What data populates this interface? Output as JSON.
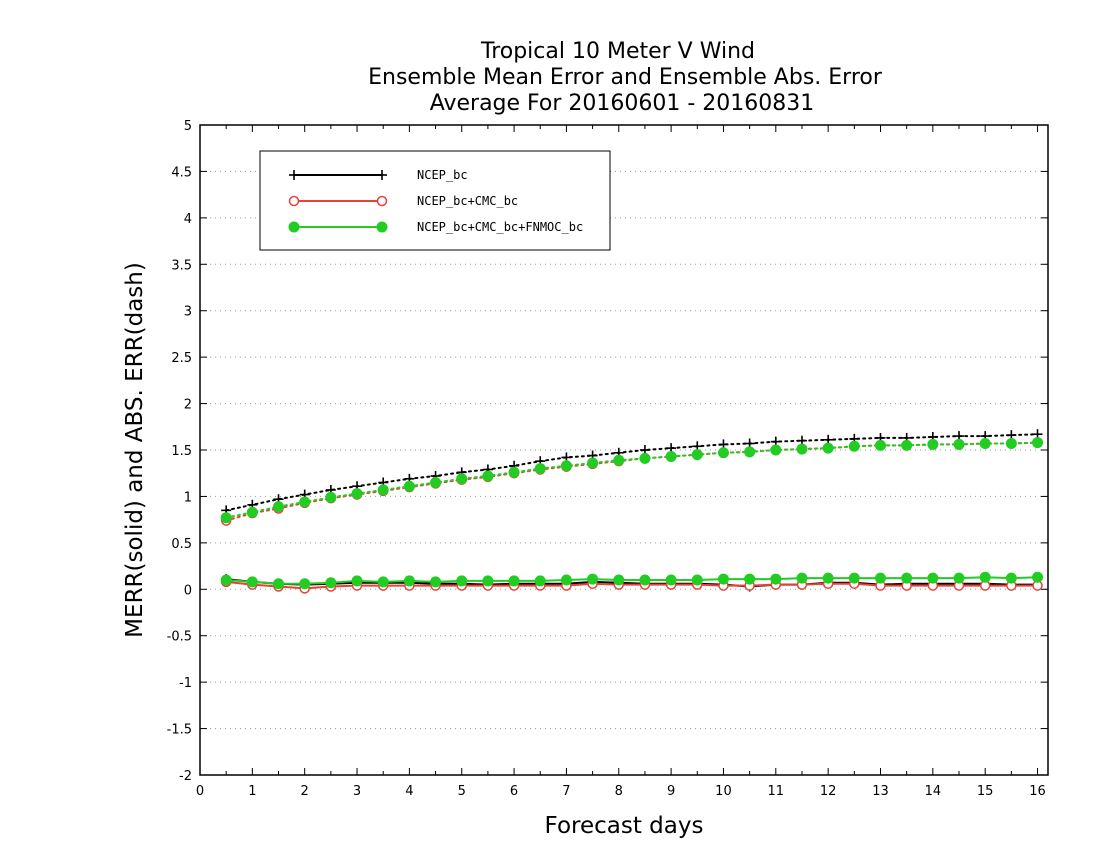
{
  "chart_data": {
    "type": "line",
    "title": [
      "Tropical 10 Meter V Wind",
      "Ensemble Mean Error and Ensemble Abs. Error",
      "Average For 20160601 - 20160831"
    ],
    "xlabel": "Forecast days",
    "ylabel": "MERR(solid) and ABS. ERR(dash)",
    "xlim": [
      0,
      16.2
    ],
    "ylim": [
      -2,
      5
    ],
    "xticks": [
      0,
      1,
      2,
      3,
      4,
      5,
      6,
      7,
      8,
      9,
      10,
      11,
      12,
      13,
      14,
      15,
      16
    ],
    "yticks": [
      -2,
      -1.5,
      -1,
      -0.5,
      0,
      0.5,
      1,
      1.5,
      2,
      2.5,
      3,
      3.5,
      4,
      4.5,
      5
    ],
    "ytick_labels": [
      "-2",
      "-1.5",
      "-1",
      "-0.5",
      "0",
      "0.5",
      "1",
      "1.5",
      "2",
      "2.5",
      "3",
      "3.5",
      "4",
      "4.5",
      "5"
    ],
    "grid": "horizontal dotted",
    "legend_position": "top-left",
    "x": [
      0.5,
      1,
      1.5,
      2,
      2.5,
      3,
      3.5,
      4,
      4.5,
      5,
      5.5,
      6,
      6.5,
      7,
      7.5,
      8,
      8.5,
      9,
      9.5,
      10,
      10.5,
      11,
      11.5,
      12,
      12.5,
      13,
      13.5,
      14,
      14.5,
      15,
      15.5,
      16
    ],
    "series": [
      {
        "name": "NCEP_bc",
        "color": "#000000",
        "marker": "plus",
        "merr": [
          0.11,
          0.08,
          0.06,
          0.05,
          0.06,
          0.07,
          0.07,
          0.07,
          0.06,
          0.06,
          0.05,
          0.06,
          0.06,
          0.06,
          0.08,
          0.07,
          0.06,
          0.06,
          0.06,
          0.05,
          0.03,
          0.05,
          0.05,
          0.07,
          0.07,
          0.05,
          0.06,
          0.06,
          0.06,
          0.06,
          0.05,
          0.05
        ],
        "abs_err": [
          0.85,
          0.91,
          0.97,
          1.02,
          1.07,
          1.11,
          1.15,
          1.19,
          1.22,
          1.26,
          1.29,
          1.33,
          1.38,
          1.42,
          1.44,
          1.47,
          1.5,
          1.52,
          1.54,
          1.56,
          1.57,
          1.59,
          1.6,
          1.61,
          1.62,
          1.63,
          1.63,
          1.64,
          1.65,
          1.65,
          1.66,
          1.67
        ]
      },
      {
        "name": "NCEP_bc+CMC_bc",
        "color": "#e8403a",
        "marker": "open-circle",
        "merr": [
          0.08,
          0.05,
          0.03,
          0.01,
          0.03,
          0.04,
          0.04,
          0.04,
          0.04,
          0.04,
          0.04,
          0.04,
          0.04,
          0.04,
          0.06,
          0.05,
          0.05,
          0.05,
          0.05,
          0.04,
          0.04,
          0.05,
          0.05,
          0.06,
          0.06,
          0.04,
          0.04,
          0.04,
          0.04,
          0.04,
          0.04,
          0.04
        ],
        "abs_err": [
          0.74,
          0.82,
          0.87,
          0.93,
          0.98,
          1.02,
          1.06,
          1.1,
          1.14,
          1.18,
          1.21,
          1.25,
          1.29,
          1.32,
          1.35,
          1.38,
          1.41,
          1.43,
          1.45,
          1.47,
          1.48,
          1.5,
          1.51,
          1.52,
          1.54,
          1.55,
          1.55,
          1.56,
          1.56,
          1.57,
          1.57,
          1.58
        ]
      },
      {
        "name": "NCEP_bc+CMC_bc+FNMOC_bc",
        "color": "#22cc22",
        "marker": "filled-circle",
        "merr": [
          0.1,
          0.08,
          0.06,
          0.06,
          0.07,
          0.09,
          0.08,
          0.09,
          0.08,
          0.09,
          0.09,
          0.09,
          0.09,
          0.1,
          0.11,
          0.1,
          0.1,
          0.1,
          0.1,
          0.11,
          0.11,
          0.11,
          0.12,
          0.12,
          0.12,
          0.12,
          0.12,
          0.12,
          0.12,
          0.13,
          0.12,
          0.13
        ],
        "abs_err": [
          0.77,
          0.83,
          0.89,
          0.94,
          0.99,
          1.03,
          1.07,
          1.11,
          1.15,
          1.19,
          1.22,
          1.26,
          1.3,
          1.33,
          1.36,
          1.39,
          1.41,
          1.43,
          1.45,
          1.47,
          1.48,
          1.5,
          1.51,
          1.52,
          1.54,
          1.55,
          1.55,
          1.56,
          1.56,
          1.57,
          1.57,
          1.58
        ]
      }
    ]
  }
}
